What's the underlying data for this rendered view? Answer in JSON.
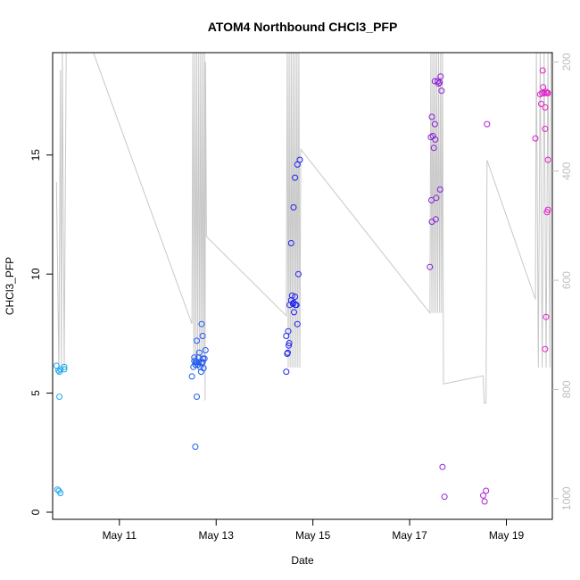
{
  "chart_data": {
    "type": "scatter",
    "title": "ATOM4 Northbound CHCl3_PFP",
    "xlabel": "Date",
    "ylabel": "CHCl3_PFP",
    "xlim": [
      9.62,
      19.95
    ],
    "ylim": [
      -0.3,
      19.3
    ],
    "y2lim": [
      1038,
      183
    ],
    "x_ticks": [
      {
        "label": "May 11",
        "value": 11
      },
      {
        "label": "May 13",
        "value": 13
      },
      {
        "label": "May 15",
        "value": 15
      },
      {
        "label": "May 17",
        "value": 17
      },
      {
        "label": "May 19",
        "value": 19
      }
    ],
    "y_ticks": [
      {
        "label": "0",
        "value": 0
      },
      {
        "label": "5",
        "value": 5
      },
      {
        "label": "10",
        "value": 10
      },
      {
        "label": "15",
        "value": 15
      }
    ],
    "y2_ticks": [
      {
        "label": "200",
        "value": 200
      },
      {
        "label": "400",
        "value": 400
      },
      {
        "label": "600",
        "value": 600
      },
      {
        "label": "800",
        "value": 800
      },
      {
        "label": "1000",
        "value": 1000
      }
    ],
    "colors": {
      "axis": "#000000",
      "secondary_axis": "#bebebe",
      "pressure_line": "#c8c8c8",
      "point_start": "#1eaaf0",
      "point_mid": "#1e1ef0",
      "point_end": "#e61ec8"
    },
    "points": [
      [
        9.7,
        6.15
      ],
      [
        9.74,
        5.95
      ],
      [
        9.76,
        5.9
      ],
      [
        9.78,
        6.0
      ],
      [
        9.86,
        6.0
      ],
      [
        9.86,
        6.1
      ],
      [
        9.76,
        4.85
      ],
      [
        9.72,
        0.95
      ],
      [
        9.75,
        0.9
      ],
      [
        9.78,
        0.8
      ],
      [
        12.5,
        5.7
      ],
      [
        12.53,
        6.1
      ],
      [
        12.55,
        6.35
      ],
      [
        12.55,
        6.5
      ],
      [
        12.57,
        6.2
      ],
      [
        12.58,
        6.3
      ],
      [
        12.6,
        6.3
      ],
      [
        12.62,
        6.2
      ],
      [
        12.63,
        6.5
      ],
      [
        12.64,
        6.3
      ],
      [
        12.65,
        6.7
      ],
      [
        12.67,
        6.1
      ],
      [
        12.69,
        5.9
      ],
      [
        12.7,
        6.25
      ],
      [
        12.72,
        6.3
      ],
      [
        12.73,
        6.45
      ],
      [
        12.74,
        6.05
      ],
      [
        12.76,
        6.45
      ],
      [
        12.78,
        6.8
      ],
      [
        12.6,
        7.2
      ],
      [
        12.72,
        7.4
      ],
      [
        12.7,
        7.9
      ],
      [
        12.6,
        4.85
      ],
      [
        12.57,
        2.75
      ],
      [
        14.45,
        5.9
      ],
      [
        14.45,
        7.4
      ],
      [
        14.47,
        6.65
      ],
      [
        14.48,
        6.7
      ],
      [
        14.5,
        7.0
      ],
      [
        14.51,
        7.1
      ],
      [
        14.49,
        7.6
      ],
      [
        14.52,
        8.7
      ],
      [
        14.55,
        8.9
      ],
      [
        14.57,
        9.1
      ],
      [
        14.59,
        8.75
      ],
      [
        14.6,
        8.8
      ],
      [
        14.61,
        8.4
      ],
      [
        14.63,
        9.05
      ],
      [
        14.64,
        8.7
      ],
      [
        14.66,
        8.7
      ],
      [
        14.68,
        7.9
      ],
      [
        14.7,
        10.0
      ],
      [
        14.55,
        11.3
      ],
      [
        14.6,
        12.8
      ],
      [
        14.63,
        14.05
      ],
      [
        14.68,
        14.6
      ],
      [
        14.73,
        14.8
      ],
      [
        17.42,
        10.3
      ],
      [
        17.45,
        13.1
      ],
      [
        17.46,
        12.2
      ],
      [
        17.48,
        15.8
      ],
      [
        17.5,
        15.3
      ],
      [
        17.52,
        16.3
      ],
      [
        17.53,
        15.65
      ],
      [
        17.54,
        12.3
      ],
      [
        17.55,
        13.2
      ],
      [
        17.44,
        15.75
      ],
      [
        17.46,
        16.6
      ],
      [
        17.58,
        18.1
      ],
      [
        17.6,
        18.0
      ],
      [
        17.62,
        18.05
      ],
      [
        17.64,
        18.3
      ],
      [
        17.66,
        17.7
      ],
      [
        17.63,
        13.55
      ],
      [
        17.52,
        18.1
      ],
      [
        17.68,
        1.9
      ],
      [
        17.72,
        0.65
      ],
      [
        18.52,
        0.7
      ],
      [
        18.55,
        0.45
      ],
      [
        18.58,
        0.9
      ],
      [
        18.6,
        16.3
      ],
      [
        19.6,
        15.7
      ],
      [
        19.7,
        17.55
      ],
      [
        19.72,
        17.15
      ],
      [
        19.74,
        17.6
      ],
      [
        19.75,
        18.55
      ],
      [
        19.76,
        17.85
      ],
      [
        19.78,
        17.6
      ],
      [
        19.8,
        17.0
      ],
      [
        19.82,
        17.65
      ],
      [
        19.84,
        17.6
      ],
      [
        19.86,
        17.6
      ],
      [
        19.8,
        16.1
      ],
      [
        19.86,
        14.8
      ],
      [
        19.84,
        12.6
      ],
      [
        19.86,
        12.7
      ],
      [
        19.82,
        8.2
      ],
      [
        19.8,
        6.85
      ]
    ],
    "pressure_profile": [
      [
        9.7,
        420
      ],
      [
        9.75,
        770
      ],
      [
        9.78,
        215
      ],
      [
        9.8,
        760
      ],
      [
        9.82,
        180
      ],
      [
        9.86,
        760
      ],
      [
        9.9,
        180
      ],
      [
        10.45,
        180
      ],
      [
        12.5,
        680
      ],
      [
        12.52,
        180
      ],
      [
        12.54,
        760
      ],
      [
        12.56,
        180
      ],
      [
        12.58,
        760
      ],
      [
        12.6,
        180
      ],
      [
        12.62,
        760
      ],
      [
        12.64,
        180
      ],
      [
        12.66,
        760
      ],
      [
        12.68,
        180
      ],
      [
        12.7,
        760
      ],
      [
        12.72,
        180
      ],
      [
        12.74,
        760
      ],
      [
        12.76,
        180
      ],
      [
        12.77,
        820
      ],
      [
        12.78,
        200
      ],
      [
        12.8,
        520
      ],
      [
        14.45,
        665
      ],
      [
        14.47,
        180
      ],
      [
        14.49,
        760
      ],
      [
        14.51,
        180
      ],
      [
        14.53,
        760
      ],
      [
        14.55,
        180
      ],
      [
        14.57,
        760
      ],
      [
        14.59,
        180
      ],
      [
        14.61,
        760
      ],
      [
        14.63,
        180
      ],
      [
        14.65,
        760
      ],
      [
        14.67,
        180
      ],
      [
        14.69,
        760
      ],
      [
        14.71,
        180
      ],
      [
        14.73,
        760
      ],
      [
        14.75,
        360
      ],
      [
        17.42,
        660
      ],
      [
        17.44,
        180
      ],
      [
        17.46,
        660
      ],
      [
        17.48,
        180
      ],
      [
        17.5,
        660
      ],
      [
        17.52,
        180
      ],
      [
        17.54,
        660
      ],
      [
        17.56,
        180
      ],
      [
        17.58,
        660
      ],
      [
        17.6,
        180
      ],
      [
        17.62,
        660
      ],
      [
        17.64,
        180
      ],
      [
        17.66,
        660
      ],
      [
        17.68,
        180
      ],
      [
        17.7,
        790
      ],
      [
        18.52,
        775
      ],
      [
        18.54,
        825
      ],
      [
        18.56,
        825
      ],
      [
        18.58,
        825
      ],
      [
        18.6,
        380
      ],
      [
        19.6,
        635
      ],
      [
        19.62,
        180
      ],
      [
        19.66,
        760
      ],
      [
        19.7,
        180
      ],
      [
        19.74,
        760
      ],
      [
        19.78,
        180
      ],
      [
        19.82,
        760
      ],
      [
        19.86,
        180
      ],
      [
        19.9,
        760
      ],
      [
        19.92,
        180
      ]
    ]
  }
}
